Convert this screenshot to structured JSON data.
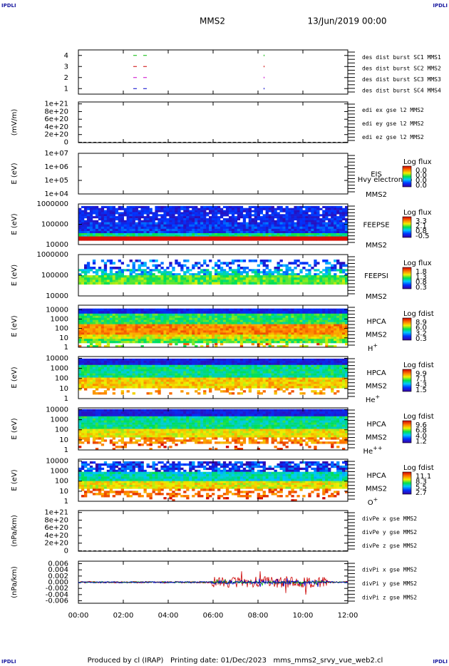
{
  "header": {
    "corner_labels": [
      "IPDLI",
      "IPDLI",
      "IPDLI",
      "IPDLI"
    ],
    "spacecraft": "MMS2",
    "date": "13/Jun/2019 00:00"
  },
  "xaxis": {
    "ticks": [
      "00:00",
      "02:00",
      "04:00",
      "06:00",
      "08:00",
      "10:00",
      "12:00"
    ]
  },
  "panels": [
    {
      "kind": "lines",
      "ylim": [
        0.5,
        4.5
      ],
      "yticks": [
        1,
        2,
        3,
        4
      ],
      "legend": [
        {
          "text": "des dist burst SC1 MMS1",
          "color": "#0000cc"
        },
        {
          "text": "des dist burst SC2 MMS2",
          "color": "#cc00cc"
        },
        {
          "text": "des dist burst SC3 MMS3",
          "color": "#cc0000"
        },
        {
          "text": "des dist burst SC4 MMS4",
          "color": "#00bb00"
        }
      ]
    },
    {
      "kind": "lines",
      "ylabel": "(mV/m)",
      "ylim": [
        -1e+19,
        1.05e+21
      ],
      "yticks": [
        {
          "value": 0,
          "label": "0"
        },
        {
          "value": 2e+20,
          "label": "2e+20"
        },
        {
          "value": 4e+20,
          "label": "4e+20"
        },
        {
          "value": 6e+20,
          "label": "6e+20"
        },
        {
          "value": 8e+20,
          "label": "8e+20"
        },
        {
          "value": 1e+21,
          "label": "1e+21"
        }
      ],
      "legend": [
        {
          "text": "edi ex gse l2 MMS2",
          "color": "#cc0000"
        },
        {
          "text": "edi ey gse l2 MMS2",
          "color": "#00bb00"
        },
        {
          "text": "edi ez gse l2 MMS2",
          "color": "#0000cc"
        }
      ]
    },
    {
      "kind": "spec",
      "ylabel": "E (eV)",
      "log": true,
      "ylim": [
        10000.0,
        10000000.0
      ],
      "yticks": [
        {
          "value": 10000.0,
          "label": "1e+04"
        },
        {
          "value": 100000.0,
          "label": "1e+05"
        },
        {
          "value": 1000000.0,
          "label": "1e+06"
        },
        {
          "value": 10000000.0,
          "label": "1e+07"
        }
      ],
      "right_labels": [
        "EIS",
        "MMS2"
      ],
      "overlay": "Hvy electron to",
      "colorbar": {
        "title": "Log flux",
        "labels": [
          "0.0",
          "0.0",
          "0.0",
          "0.0"
        ]
      }
    },
    {
      "kind": "spec",
      "ylabel": "E (eV)",
      "log": true,
      "ylim": [
        10000.0,
        1000000.0
      ],
      "yticks": [
        10000,
        100000,
        1000000
      ],
      "right_labels": [
        "FEEPSE",
        "MMS2"
      ],
      "colorbar": {
        "title": "Log flux",
        "labels": [
          "3.3",
          "2.1",
          "0.8",
          "-0.5"
        ]
      }
    },
    {
      "kind": "spec",
      "ylabel": "E (eV)",
      "log": true,
      "ylim": [
        10000.0,
        1000000.0
      ],
      "yticks": [
        10000,
        100000,
        1000000
      ],
      "right_labels": [
        "FEEPSI",
        "MMS2"
      ],
      "colorbar": {
        "title": "Log flux",
        "labels": [
          "1.8",
          "1.3",
          "0.8",
          "0.3"
        ]
      }
    },
    {
      "kind": "spec",
      "ylabel": "E (eV)",
      "log": true,
      "ylim": [
        1,
        30000
      ],
      "yticks": [
        1,
        10,
        100,
        1000,
        10000
      ],
      "right_labels": [
        "HPCA",
        "MMS2"
      ],
      "species": {
        "base": "H",
        "charge": "+"
      },
      "colorbar": {
        "title": "Log fdist",
        "labels": [
          "8.9",
          "6.0",
          "3.2",
          "0.3"
        ]
      }
    },
    {
      "kind": "spec",
      "ylabel": "E (eV)",
      "log": true,
      "ylim": [
        1,
        15000
      ],
      "yticks": [
        1,
        10,
        100,
        1000,
        10000
      ],
      "right_labels": [
        "HPCA",
        "MMS2"
      ],
      "species": {
        "base": "He",
        "charge": "+"
      },
      "colorbar": {
        "title": "Log fdist",
        "labels": [
          "9.9",
          "7.1",
          "4.3",
          "1.5"
        ]
      }
    },
    {
      "kind": "spec",
      "ylabel": "E (eV)",
      "log": true,
      "ylim": [
        1,
        15000
      ],
      "yticks": [
        1,
        10,
        100,
        1000,
        10000
      ],
      "right_labels": [
        "HPCA",
        "MMS2"
      ],
      "species": {
        "base": "He",
        "charge": "++"
      },
      "colorbar": {
        "title": "Log fdist",
        "labels": [
          "9.6",
          "6.8",
          "4.0",
          "1.2"
        ]
      }
    },
    {
      "kind": "spec",
      "ylabel": "E (eV)",
      "log": true,
      "ylim": [
        1,
        15000
      ],
      "yticks": [
        1,
        10,
        100,
        1000,
        10000
      ],
      "right_labels": [
        "HPCA",
        "MMS2"
      ],
      "species": {
        "base": "O",
        "charge": "+"
      },
      "colorbar": {
        "title": "Log fdist",
        "labels": [
          "11.1",
          "8.3",
          "5.5",
          "2.7"
        ]
      }
    },
    {
      "kind": "lines",
      "ylabel": "(nPa/km)",
      "ylim": [
        -1e+19,
        1.05e+21
      ],
      "yticks": [
        {
          "value": 0,
          "label": "0"
        },
        {
          "value": 2e+20,
          "label": "2e+20"
        },
        {
          "value": 4e+20,
          "label": "4e+20"
        },
        {
          "value": 6e+20,
          "label": "6e+20"
        },
        {
          "value": 8e+20,
          "label": "8e+20"
        },
        {
          "value": 1e+21,
          "label": "1e+21"
        }
      ],
      "legend": [
        {
          "text": "divPe x gse MMS2",
          "color": "#cc0000"
        },
        {
          "text": "divPe y gse MMS2",
          "color": "#00bb00"
        },
        {
          "text": "divPe z gse MMS2",
          "color": "#0000cc"
        }
      ]
    },
    {
      "kind": "lines",
      "ylabel": "(nPa/km)",
      "ylim": [
        -0.0068,
        0.0068
      ],
      "yticks": [
        {
          "value": -0.006,
          "label": "-0.006"
        },
        {
          "value": -0.004,
          "label": "-0.004"
        },
        {
          "value": -0.002,
          "label": "-0.002"
        },
        {
          "value": 0,
          "label": "0.000"
        },
        {
          "value": 0.002,
          "label": "0.002"
        },
        {
          "value": 0.004,
          "label": "0.004"
        },
        {
          "value": 0.006,
          "label": "0.006"
        }
      ],
      "legend": [
        {
          "text": "divPi x gse MMS2",
          "color": "#cc0000"
        },
        {
          "text": "divPi y gse MMS2",
          "color": "#00bb00"
        },
        {
          "text": "divPi z gse MMS2",
          "color": "#0000cc"
        }
      ]
    }
  ],
  "footer": {
    "text": "Produced by cl (IRAP)   Printing date: 01/Dec/2023   mms_mms2_srvy_vue_web2.cl"
  }
}
